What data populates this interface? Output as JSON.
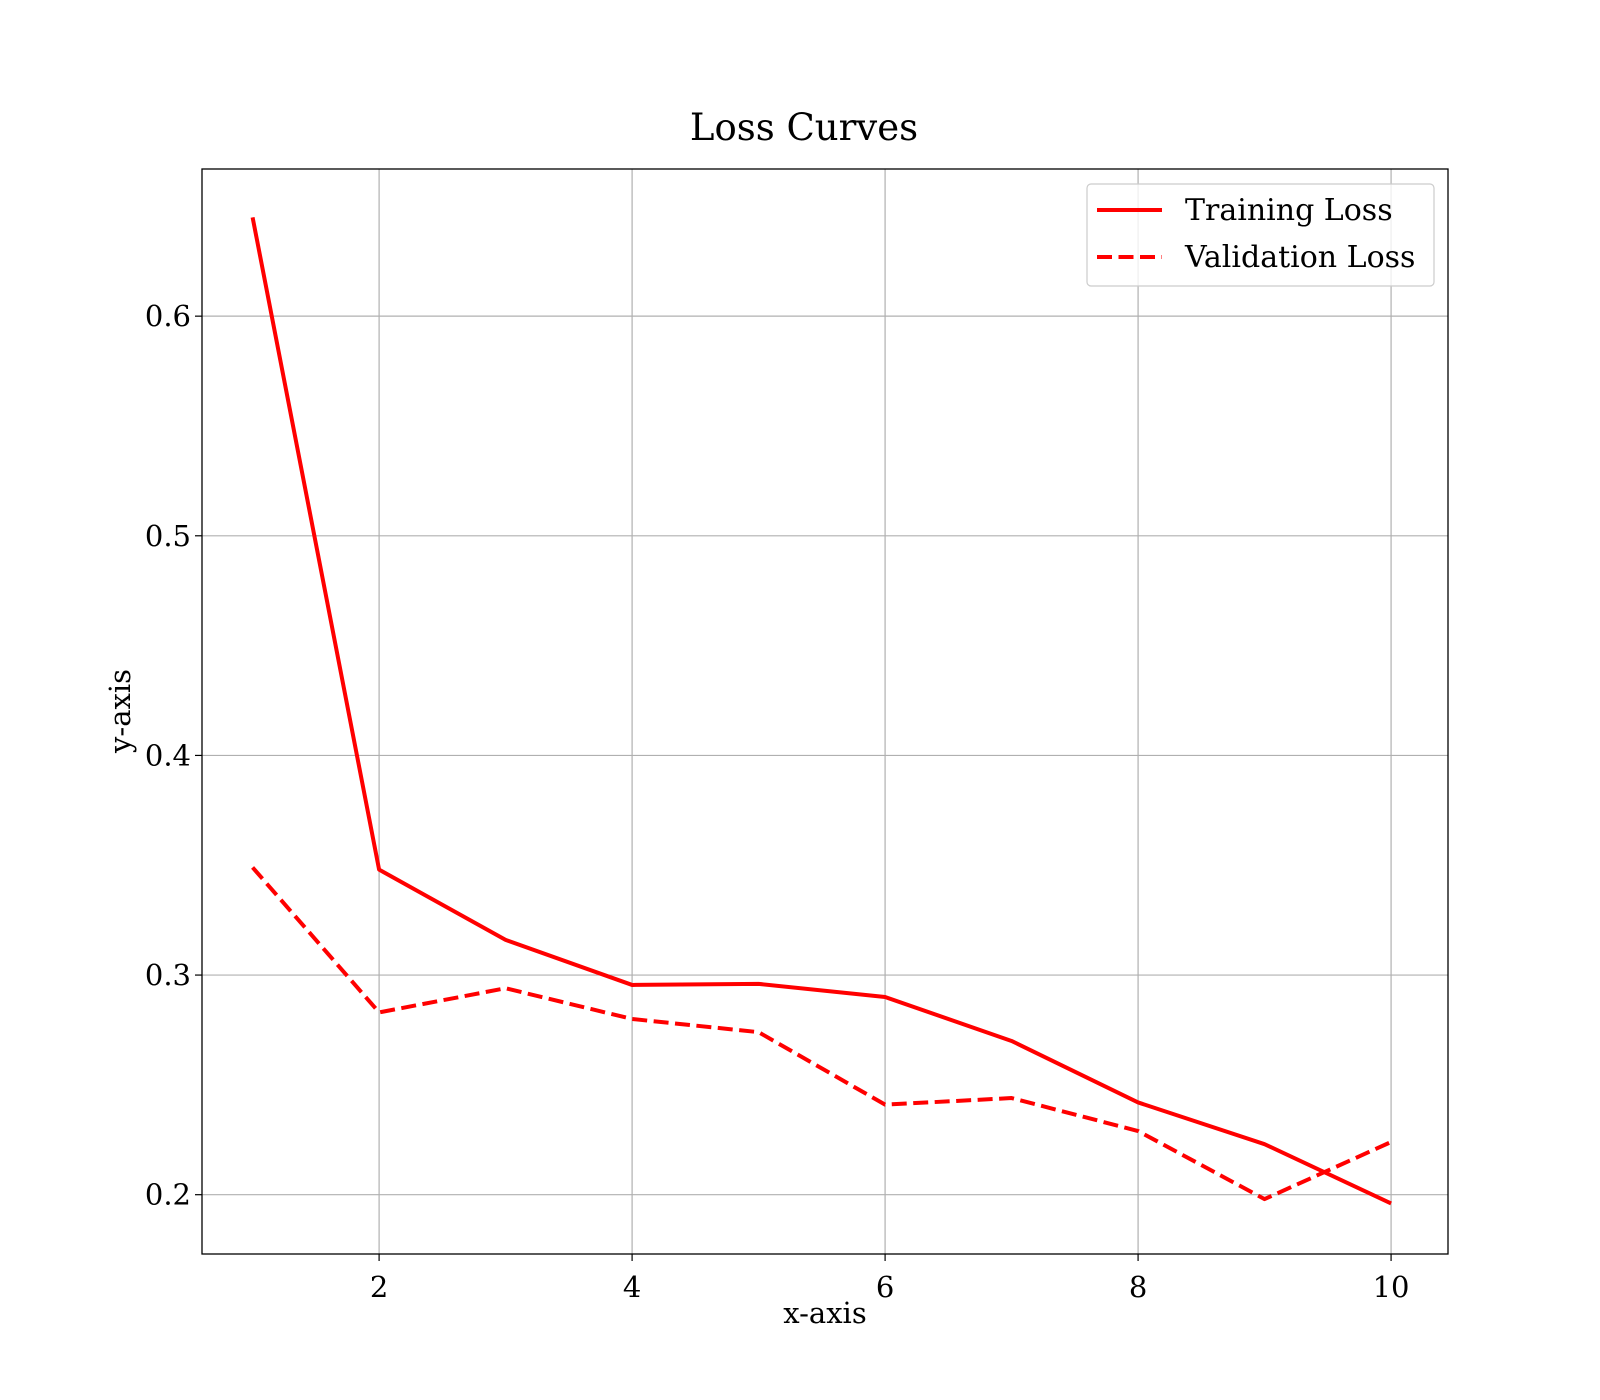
{
  "chart_data": {
    "type": "line",
    "title": "Loss Curves",
    "xlabel": "x-axis",
    "ylabel": "y-axis",
    "xlim": [
      0.6,
      10.45
    ],
    "ylim": [
      0.173,
      0.667
    ],
    "xticks": [
      2,
      4,
      6,
      8,
      10
    ],
    "yticks": [
      0.2,
      0.3,
      0.4,
      0.5,
      0.6
    ],
    "xtick_labels": [
      "2",
      "4",
      "6",
      "8",
      "10"
    ],
    "ytick_labels": [
      "0.2",
      "0.3",
      "0.4",
      "0.5",
      "0.6"
    ],
    "grid": true,
    "legend_position": "top-right",
    "x": [
      1,
      2,
      3,
      4,
      5,
      6,
      7,
      8,
      9,
      10
    ],
    "series": [
      {
        "name": "Training Loss",
        "style": "solid",
        "color": "#ff0000",
        "values": [
          0.645,
          0.348,
          0.316,
          0.2955,
          0.296,
          0.29,
          0.27,
          0.242,
          0.223,
          0.196
        ]
      },
      {
        "name": "Validation Loss",
        "style": "dashed",
        "color": "#ff0000",
        "values": [
          0.349,
          0.283,
          0.294,
          0.28,
          0.274,
          0.241,
          0.244,
          0.229,
          0.198,
          0.224
        ]
      }
    ]
  }
}
